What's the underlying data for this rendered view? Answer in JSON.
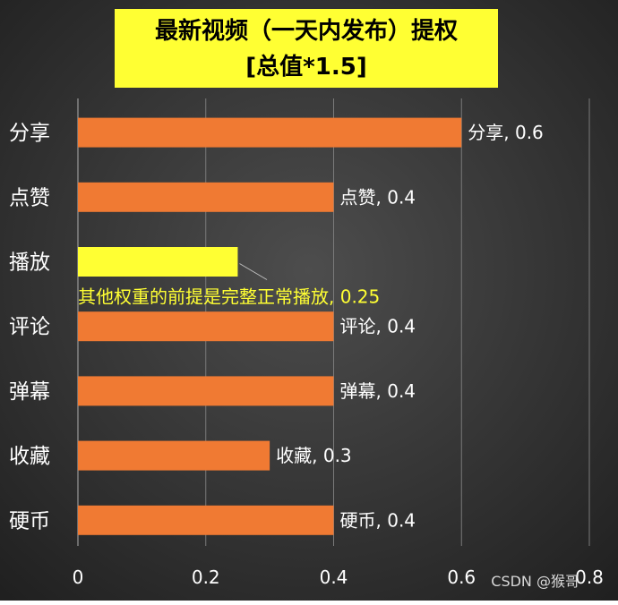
{
  "chart_data": {
    "type": "bar",
    "orientation": "horizontal",
    "title": "最新视频（一天内发布）提权",
    "subtitle": "[总值*1.5]",
    "categories": [
      "分享",
      "点赞",
      "播放",
      "评论",
      "弹幕",
      "收藏",
      "硬币"
    ],
    "values": [
      0.6,
      0.4,
      0.25,
      0.4,
      0.4,
      0.3,
      0.4
    ],
    "data_labels": [
      "分享, 0.6",
      "点赞, 0.4",
      "其他权重的前提是完整正常播放, 0.25",
      "评论, 0.4",
      "弹幕, 0.4",
      "收藏, 0.3",
      "硬币, 0.4"
    ],
    "highlight_category": "播放",
    "xlim": [
      0,
      0.8
    ],
    "xticks": [
      "0",
      "0.2",
      "0.4",
      "0.6",
      "0.8"
    ],
    "grid": "vertical",
    "legend": "none",
    "colors": {
      "bar": "#f07a33",
      "highlight_bar": "#ffff33",
      "highlight_label": "#ffff33",
      "background": "#3a3a3a",
      "text": "#ffffff",
      "title_box": "#ffff33"
    }
  },
  "watermark": "CSDN @猴哥"
}
